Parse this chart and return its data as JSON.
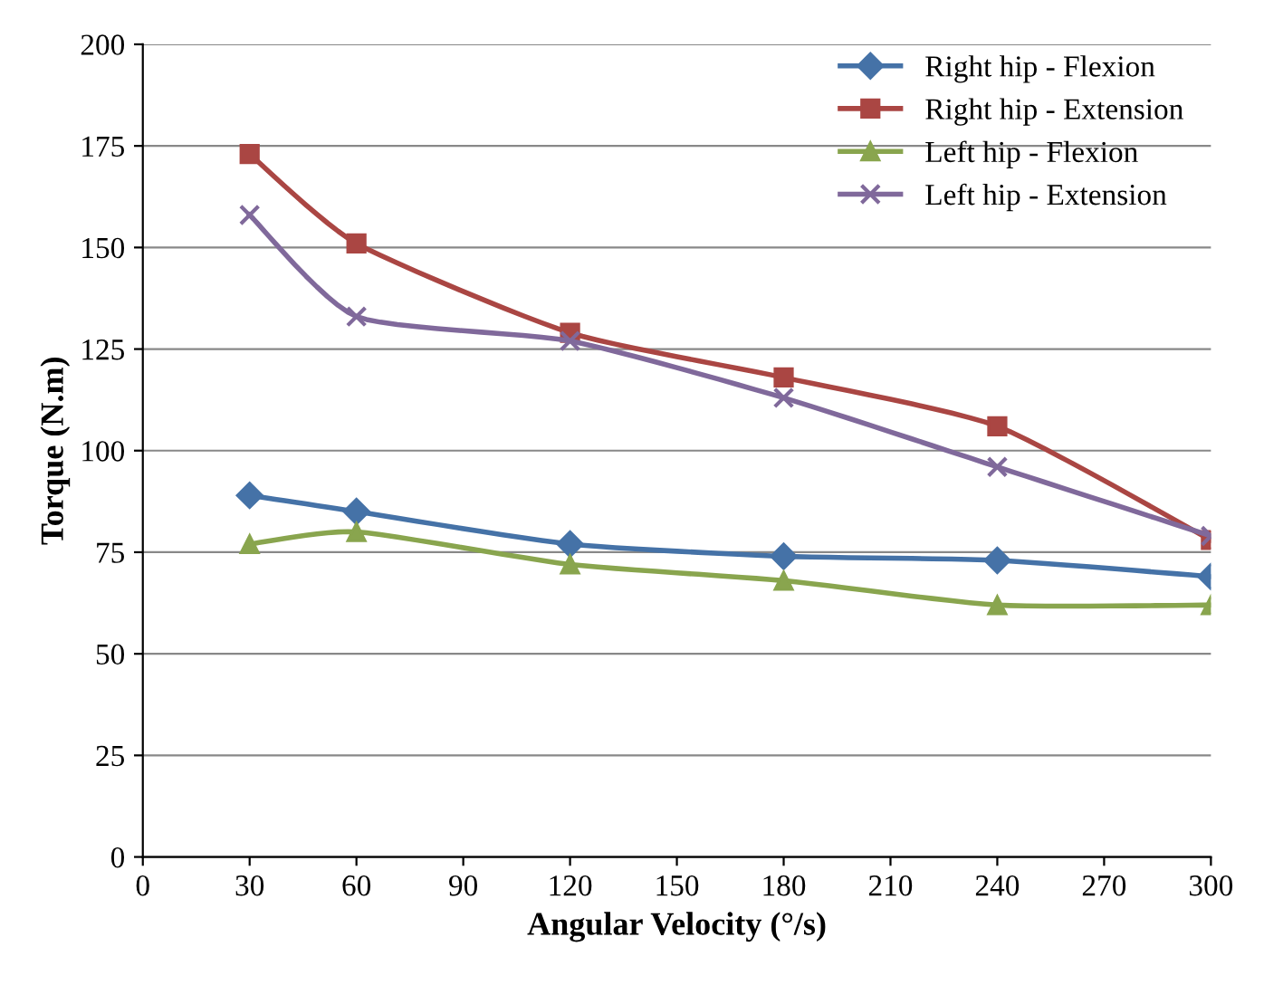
{
  "chart_data": {
    "type": "line",
    "xlabel": "Angular Velocity (°/s)",
    "ylabel": "Torque (N.m)",
    "x": [
      30,
      60,
      120,
      180,
      240,
      300
    ],
    "series": [
      {
        "name": "Right hip - Flexion",
        "color": "#4572a7",
        "marker": "diamond",
        "values": [
          89,
          85,
          77,
          74,
          73,
          69
        ]
      },
      {
        "name": "Right hip - Extension",
        "color": "#aa4643",
        "marker": "square",
        "values": [
          173,
          151,
          129,
          118,
          106,
          78
        ]
      },
      {
        "name": "Left hip - Flexion",
        "color": "#89a54e",
        "marker": "triangle",
        "values": [
          77,
          80,
          72,
          68,
          62,
          62
        ]
      },
      {
        "name": "Left hip - Extension",
        "color": "#80699b",
        "marker": "cross",
        "values": [
          158,
          133,
          127,
          113,
          96,
          79
        ]
      }
    ],
    "xlim": [
      0,
      300
    ],
    "xticks": [
      0,
      30,
      60,
      90,
      120,
      150,
      180,
      210,
      240,
      270,
      300
    ],
    "ylim": [
      0,
      200
    ],
    "yticks": [
      0,
      25,
      50,
      75,
      100,
      125,
      150,
      175,
      200
    ],
    "grid": "y",
    "legend": "top right",
    "line_style": "solid"
  }
}
